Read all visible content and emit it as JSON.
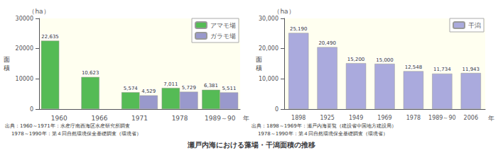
{
  "title": "瀬戸内海における藻場・干潟面積の推移",
  "chart_data": [
    {
      "type": "bar",
      "categories": [
        "1960",
        "1966",
        "1971",
        "1978",
        "1989～90"
      ],
      "series": [
        {
          "name": "アマモ場",
          "color": "#55bb55",
          "values": [
            22635,
            10623,
            5574,
            7011,
            6381
          ],
          "value_labels": [
            "22,635",
            "10,623",
            "5,574",
            "7,011",
            "6,381"
          ]
        },
        {
          "name": "ガラモ場",
          "color": "#9999cc",
          "values": [
            null,
            null,
            4529,
            5729,
            5511
          ],
          "value_labels": [
            null,
            null,
            "4,529",
            "5,729",
            "5,511"
          ]
        }
      ],
      "ylabel": "面\n積",
      "y_unit": "（ha）",
      "x_unit": "年",
      "source": [
        "出典：1960～1971年：水産庁南西海区水産研究所調査",
        "    1978～1990年：第４回自然環境保全基礎調査（環境省）"
      ],
      "ylim": [
        0,
        30000
      ],
      "yticks": [
        0,
        10000,
        20000,
        30000
      ],
      "grid": false,
      "legend": "upper right",
      "data_labels": true
    },
    {
      "type": "bar",
      "categories": [
        "1898",
        "1925",
        "1949",
        "1969",
        "1978",
        "1989～90",
        "2006"
      ],
      "series": [
        {
          "name": "干潟",
          "color": "#aaaadd",
          "values": [
            25190,
            20490,
            15200,
            15000,
            12548,
            11734,
            11943
          ],
          "value_labels": [
            "25,190",
            "20,490",
            "15,200",
            "15,000",
            "12,548",
            "11,734",
            "11,943"
          ]
        }
      ],
      "ylabel": "面\n積",
      "y_unit": "（ha）",
      "x_unit": "年",
      "source": [
        "出典：1898～1969年：瀬戸内海要覧（建設省中国地方建設局）",
        "    1978～1990年：第４回自然環境保全基礎調査（環境省）"
      ],
      "ylim": [
        0,
        30000
      ],
      "yticks": [
        0,
        {
          "value": 10000,
          "label": "10,000"
        },
        {
          "value": 20000,
          "label": "20,000"
        },
        {
          "value": 30000,
          "label": "30,000"
        }
      ],
      "grid": false,
      "legend": "upper right",
      "data_labels": true
    }
  ]
}
